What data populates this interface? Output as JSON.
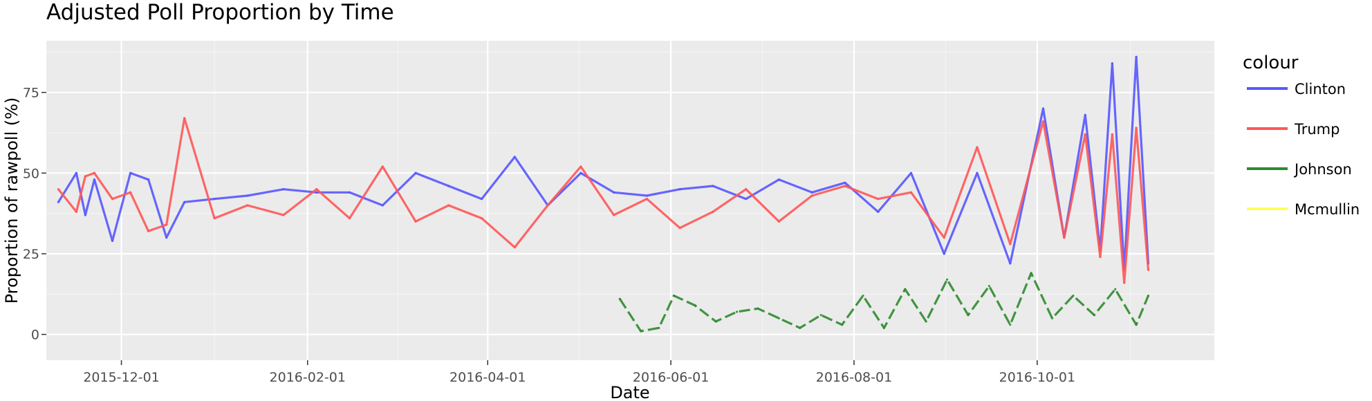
{
  "chart_data": {
    "type": "line",
    "title": "Adjusted Poll Proportion by Time",
    "xlabel": "Date",
    "ylabel": "Proportion of rawpoll (%)",
    "x_ticks": [
      "2015-12-01",
      "2016-02-01",
      "2016-04-01",
      "2016-06-01",
      "2016-08-01",
      "2016-10-01"
    ],
    "y_ticks": [
      0,
      25,
      50,
      75
    ],
    "xlim": [
      "2015-11-06",
      "2016-11-29"
    ],
    "ylim": [
      -8,
      91
    ],
    "grid": true,
    "legend": {
      "title": "colour",
      "position": "right"
    },
    "series": [
      {
        "name": "Clinton",
        "color": "#5757ff",
        "x": [
          "2015-11-10",
          "2015-11-16",
          "2015-11-19",
          "2015-11-22",
          "2015-11-28",
          "2015-12-04",
          "2015-12-10",
          "2015-12-16",
          "2015-12-22",
          "2016-01-01",
          "2016-01-12",
          "2016-01-24",
          "2016-02-04",
          "2016-02-15",
          "2016-02-26",
          "2016-03-08",
          "2016-03-19",
          "2016-03-30",
          "2016-04-10",
          "2016-04-21",
          "2016-05-02",
          "2016-05-13",
          "2016-05-24",
          "2016-06-04",
          "2016-06-15",
          "2016-06-26",
          "2016-07-07",
          "2016-07-18",
          "2016-07-29",
          "2016-08-09",
          "2016-08-20",
          "2016-08-31",
          "2016-09-11",
          "2016-09-22",
          "2016-10-03",
          "2016-10-10",
          "2016-10-17",
          "2016-10-22",
          "2016-10-26",
          "2016-10-30",
          "2016-11-03",
          "2016-11-07"
        ],
        "y": [
          41,
          50,
          37,
          48,
          29,
          50,
          48,
          30,
          41,
          42,
          43,
          45,
          44,
          44,
          40,
          50,
          46,
          42,
          55,
          40,
          50,
          44,
          43,
          45,
          46,
          42,
          48,
          44,
          47,
          38,
          50,
          25,
          50,
          22,
          70,
          30,
          68,
          26,
          84,
          20,
          86,
          22
        ]
      },
      {
        "name": "Trump",
        "color": "#ff5757",
        "x": [
          "2015-11-10",
          "2015-11-16",
          "2015-11-19",
          "2015-11-22",
          "2015-11-28",
          "2015-12-04",
          "2015-12-10",
          "2015-12-16",
          "2015-12-22",
          "2016-01-01",
          "2016-01-12",
          "2016-01-24",
          "2016-02-04",
          "2016-02-15",
          "2016-02-26",
          "2016-03-08",
          "2016-03-19",
          "2016-03-30",
          "2016-04-10",
          "2016-04-21",
          "2016-05-02",
          "2016-05-13",
          "2016-05-24",
          "2016-06-04",
          "2016-06-15",
          "2016-06-26",
          "2016-07-07",
          "2016-07-18",
          "2016-07-29",
          "2016-08-09",
          "2016-08-20",
          "2016-08-31",
          "2016-09-11",
          "2016-09-22",
          "2016-10-03",
          "2016-10-10",
          "2016-10-17",
          "2016-10-22",
          "2016-10-26",
          "2016-10-30",
          "2016-11-03",
          "2016-11-07"
        ],
        "y": [
          45,
          38,
          49,
          50,
          42,
          44,
          32,
          34,
          67,
          36,
          40,
          37,
          45,
          36,
          52,
          35,
          40,
          36,
          27,
          40,
          52,
          37,
          42,
          33,
          38,
          45,
          35,
          43,
          46,
          42,
          44,
          30,
          58,
          28,
          66,
          30,
          62,
          24,
          62,
          16,
          64,
          20
        ]
      },
      {
        "name": "Johnson",
        "color": "#2e8b2e",
        "x": [
          "2016-05-15",
          "2016-05-22",
          "2016-05-28",
          "2016-06-02",
          "2016-06-09",
          "2016-06-16",
          "2016-06-23",
          "2016-06-30",
          "2016-07-07",
          "2016-07-14",
          "2016-07-21",
          "2016-07-28",
          "2016-08-04",
          "2016-08-11",
          "2016-08-18",
          "2016-08-25",
          "2016-09-01",
          "2016-09-08",
          "2016-09-15",
          "2016-09-22",
          "2016-09-29",
          "2016-10-06",
          "2016-10-13",
          "2016-10-20",
          "2016-10-27",
          "2016-11-03",
          "2016-11-07"
        ],
        "y": [
          11,
          1,
          2,
          12,
          9,
          4,
          7,
          8,
          5,
          2,
          6,
          3,
          12,
          2,
          14,
          4,
          17,
          6,
          15,
          3,
          19,
          5,
          12,
          6,
          14,
          3,
          12
        ]
      },
      {
        "name": "Mcmullin",
        "color": "#ffff57",
        "x": [],
        "y": []
      }
    ]
  }
}
